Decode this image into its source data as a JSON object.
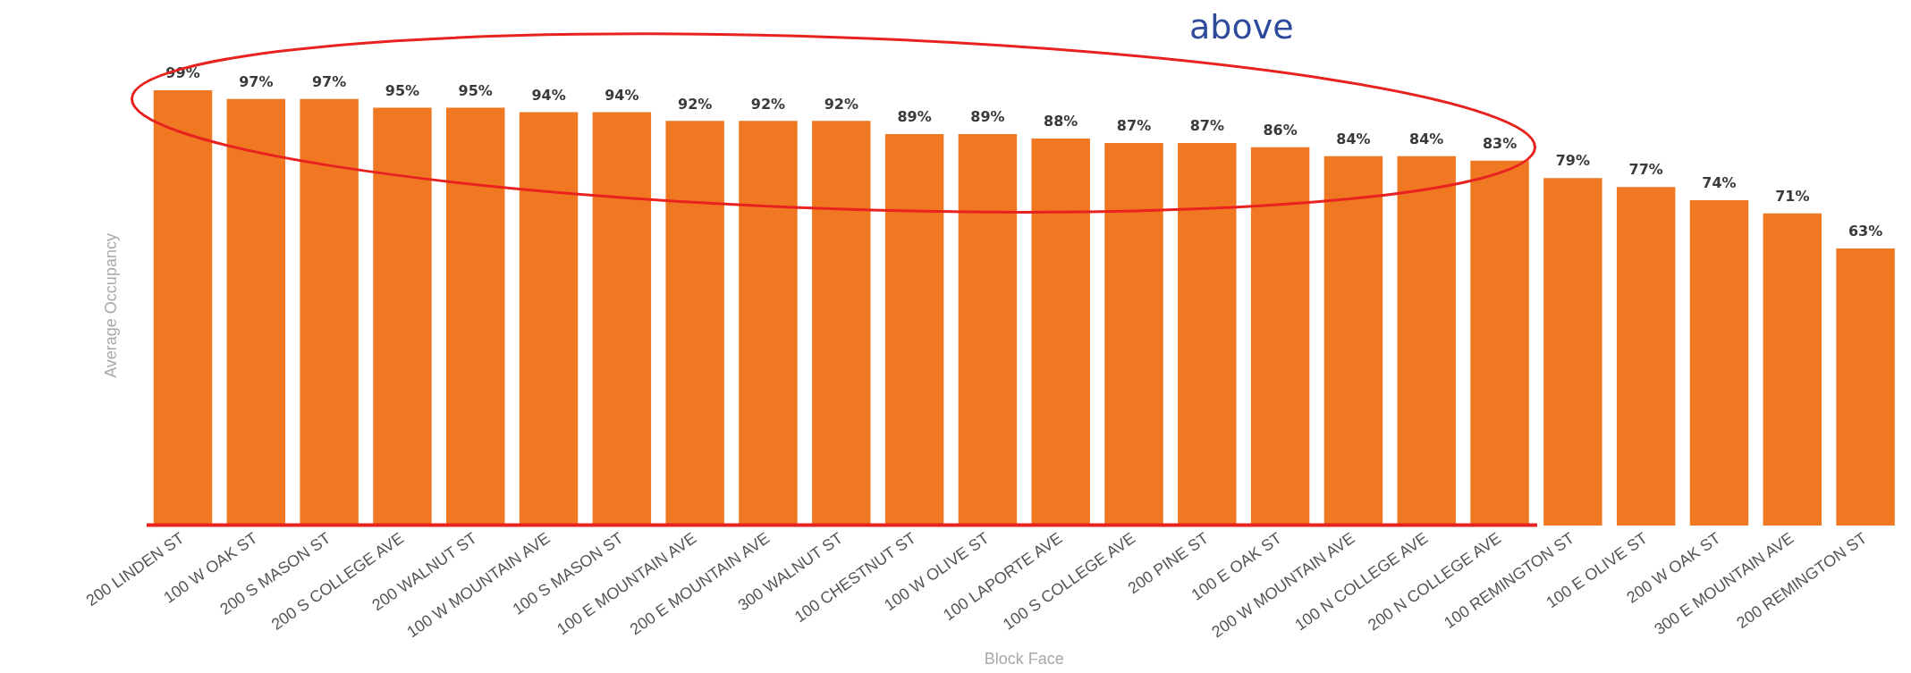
{
  "chart_data": {
    "type": "bar",
    "xlabel": "Block Face",
    "ylabel": "Average Occupancy",
    "annotations": [
      "above"
    ],
    "categories": [
      "200 LINDEN ST",
      "100 W OAK ST",
      "200 S MASON ST",
      "200 S COLLEGE AVE",
      "200 WALNUT ST",
      "100 W MOUNTAIN AVE",
      "100 S MASON ST",
      "100 E MOUNTAIN AVE",
      "200 E MOUNTAIN AVE",
      "300 WALNUT ST",
      "100 CHESTNUT ST",
      "100 W OLIVE ST",
      "100 LAPORTE AVE",
      "100 S COLLEGE AVE",
      "200 PINE ST",
      "100 E OAK ST",
      "200 W MOUNTAIN AVE",
      "100 N COLLEGE AVE",
      "200 N COLLEGE AVE",
      "100 REMINGTON ST",
      "100 E OLIVE ST",
      "200 W OAK ST",
      "300 E MOUNTAIN AVE",
      "200 REMINGTON ST"
    ],
    "values": [
      99,
      97,
      97,
      95,
      95,
      94,
      94,
      92,
      92,
      92,
      89,
      89,
      88,
      87,
      87,
      86,
      84,
      84,
      83,
      79,
      77,
      74,
      71,
      63
    ],
    "value_labels": [
      "99%",
      "97%",
      "97%",
      "95%",
      "95%",
      "94%",
      "94%",
      "92%",
      "92%",
      "92%",
      "89%",
      "89%",
      "88%",
      "87%",
      "87%",
      "86%",
      "84%",
      "84%",
      "83%",
      "79%",
      "77%",
      "74%",
      "71%",
      "63%"
    ],
    "color": "#f07822",
    "tick_labels": "x",
    "grid": false,
    "legend": false
  }
}
